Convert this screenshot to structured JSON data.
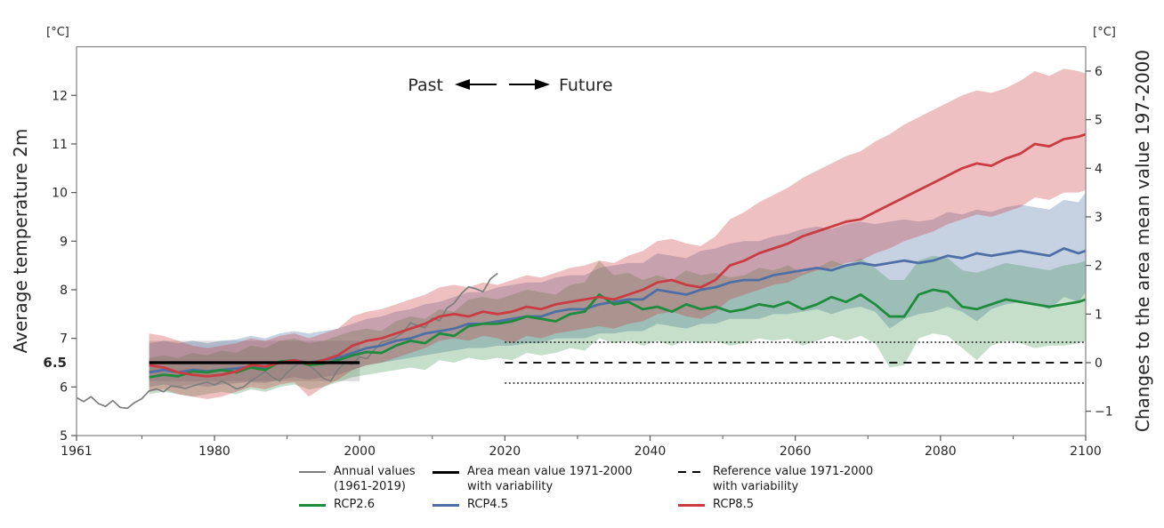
{
  "chart": {
    "left_unit": "[°C]",
    "right_unit": "[°C]",
    "left_axis_title": "Average temperature 2m",
    "right_axis_title": "Changes to the area mean value 197-2000",
    "highlight_tick": "6.5",
    "annotation": {
      "past": "Past",
      "future": "Future"
    }
  },
  "legend": {
    "annual": {
      "line1": "Annual values",
      "line2": "(1961-2019)"
    },
    "area_mean": {
      "line1": "Area mean value 1971-2000",
      "line2": "with variability"
    },
    "reference": {
      "line1": "Reference value 1971-2000",
      "line2": "with variability"
    },
    "rcp26": "RCP2.6",
    "rcp45": "RCP4.5",
    "rcp85": "RCP8.5"
  },
  "chart_data": {
    "type": "line",
    "title": "",
    "x_axis": {
      "range": [
        1961,
        2100
      ],
      "major_ticks": [
        1961,
        1980,
        2000,
        2020,
        2040,
        2060,
        2080,
        2100
      ],
      "minor_ticks": [
        1970,
        1990,
        2010,
        2030,
        2050,
        2070,
        2090
      ]
    },
    "y_left": {
      "label": "Average temperature 2m",
      "unit": "[°C]",
      "range": [
        5,
        13
      ],
      "ticks": [
        5,
        6,
        7,
        8,
        9,
        10,
        11,
        12
      ],
      "special_tick": 6.5
    },
    "y_right": {
      "label": "Changes to the area mean value 197-2000",
      "unit": "[°C]",
      "ticks": [
        -1,
        0,
        1,
        2,
        3,
        4,
        5,
        6
      ],
      "offset": 6.5
    },
    "grid": false,
    "legend_position": "bottom",
    "styles": {
      "annual_color": "#7d7d7d",
      "mean_line_color": "#000000",
      "reference_color": "#161616",
      "variability_box_fill": "#dcdcdc",
      "frame_color": "#8c8c8c"
    },
    "annual": {
      "name": "Annual values (1961-2019)",
      "start_year": 1961,
      "values": [
        5.78,
        5.7,
        5.8,
        5.66,
        5.6,
        5.72,
        5.58,
        5.56,
        5.68,
        5.76,
        5.92,
        5.96,
        5.9,
        6.02,
        6.0,
        5.97,
        6.02,
        6.06,
        6.1,
        6.04,
        6.12,
        6.05,
        5.96,
        6.0,
        6.12,
        6.22,
        6.32,
        6.2,
        6.12,
        6.3,
        6.42,
        6.52,
        6.45,
        6.33,
        6.18,
        6.12,
        6.36,
        6.5,
        6.46,
        6.62,
        6.58,
        6.76,
        6.92,
        6.96,
        7.02,
        7.12,
        7.32,
        7.26,
        7.22,
        7.42,
        7.36,
        7.62,
        7.72,
        7.92,
        8.06,
        8.02,
        7.96,
        8.22,
        8.34
      ]
    },
    "mean_1971_2000": {
      "value": 6.5,
      "year_range": [
        1971,
        2000
      ],
      "variability": [
        6.12,
        6.95
      ]
    },
    "reference_line": {
      "value": 6.5,
      "year_range": [
        2020,
        2100
      ],
      "variability_values": [
        6.08,
        6.92
      ]
    },
    "model_years": [
      1971,
      1973,
      1975,
      1977,
      1979,
      1981,
      1983,
      1985,
      1987,
      1989,
      1991,
      1993,
      1995,
      1997,
      1999,
      2001,
      2003,
      2005,
      2007,
      2009,
      2011,
      2013,
      2015,
      2017,
      2019,
      2021,
      2023,
      2025,
      2027,
      2029,
      2031,
      2033,
      2035,
      2037,
      2039,
      2041,
      2043,
      2045,
      2047,
      2049,
      2051,
      2053,
      2055,
      2057,
      2059,
      2061,
      2063,
      2065,
      2067,
      2069,
      2071,
      2073,
      2075,
      2077,
      2079,
      2081,
      2083,
      2085,
      2087,
      2089,
      2091,
      2093,
      2095,
      2097,
      2099,
      2100
    ],
    "series": [
      {
        "name": "RCP2.6",
        "key": "rcp26",
        "z": 2,
        "color": "#1e8b3d",
        "band_color": "rgba(46,139,69,0.28)",
        "mean": [
          6.2,
          6.25,
          6.22,
          6.32,
          6.3,
          6.35,
          6.3,
          6.4,
          6.35,
          6.52,
          6.55,
          6.45,
          6.48,
          6.55,
          6.65,
          6.72,
          6.7,
          6.85,
          6.95,
          6.9,
          7.1,
          7.05,
          7.25,
          7.3,
          7.3,
          7.35,
          7.45,
          7.4,
          7.35,
          7.5,
          7.55,
          7.9,
          7.7,
          7.75,
          7.6,
          7.65,
          7.55,
          7.7,
          7.6,
          7.65,
          7.55,
          7.6,
          7.7,
          7.65,
          7.75,
          7.6,
          7.7,
          7.85,
          7.75,
          7.9,
          7.7,
          7.45,
          7.45,
          7.9,
          8.0,
          7.95,
          7.65,
          7.6,
          7.7,
          7.8,
          7.75,
          7.7,
          7.65,
          7.7,
          7.75,
          7.8
        ],
        "lo": [
          5.85,
          5.9,
          5.85,
          5.8,
          5.85,
          5.9,
          5.85,
          5.95,
          5.9,
          6.0,
          6.05,
          5.95,
          6.0,
          6.1,
          6.2,
          6.25,
          6.3,
          6.35,
          6.4,
          6.35,
          6.55,
          6.5,
          6.6,
          6.55,
          6.6,
          6.55,
          6.7,
          6.65,
          6.7,
          6.8,
          6.75,
          7.0,
          6.9,
          6.95,
          6.85,
          6.95,
          6.85,
          6.95,
          6.9,
          6.95,
          6.85,
          6.9,
          7.0,
          6.95,
          7.0,
          6.85,
          6.95,
          7.05,
          6.95,
          7.05,
          6.9,
          6.4,
          6.45,
          7.0,
          7.1,
          7.05,
          6.8,
          6.55,
          6.85,
          6.95,
          6.9,
          6.8,
          6.85,
          6.85,
          6.9,
          6.95
        ],
        "hi": [
          6.6,
          6.65,
          6.6,
          6.7,
          6.65,
          6.75,
          6.7,
          6.85,
          6.8,
          6.95,
          7.0,
          6.9,
          6.95,
          7.05,
          7.15,
          7.2,
          7.15,
          7.35,
          7.45,
          7.4,
          7.6,
          7.55,
          7.8,
          7.85,
          7.8,
          7.9,
          8.0,
          7.95,
          7.9,
          8.1,
          8.15,
          8.6,
          8.3,
          8.35,
          8.2,
          8.3,
          8.2,
          8.4,
          8.3,
          8.35,
          8.25,
          8.3,
          8.45,
          8.4,
          8.5,
          8.35,
          8.45,
          8.6,
          8.5,
          8.65,
          8.45,
          8.2,
          8.2,
          8.6,
          8.7,
          8.65,
          8.4,
          8.35,
          8.45,
          8.55,
          8.5,
          8.45,
          8.4,
          8.5,
          8.55,
          8.6
        ]
      },
      {
        "name": "RCP4.5",
        "key": "rcp45",
        "z": 1,
        "color": "#4e6fa6",
        "band_color": "rgba(78,111,166,0.32)",
        "mean": [
          6.3,
          6.35,
          6.3,
          6.35,
          6.32,
          6.35,
          6.38,
          6.42,
          6.4,
          6.5,
          6.55,
          6.5,
          6.55,
          6.6,
          6.7,
          6.8,
          6.85,
          6.95,
          7.0,
          7.1,
          7.15,
          7.2,
          7.3,
          7.3,
          7.35,
          7.4,
          7.45,
          7.45,
          7.55,
          7.6,
          7.6,
          7.7,
          7.75,
          7.8,
          7.8,
          8.0,
          7.95,
          7.9,
          8.0,
          8.05,
          8.15,
          8.2,
          8.2,
          8.3,
          8.35,
          8.4,
          8.45,
          8.4,
          8.5,
          8.55,
          8.5,
          8.55,
          8.6,
          8.55,
          8.6,
          8.7,
          8.65,
          8.75,
          8.7,
          8.75,
          8.8,
          8.75,
          8.7,
          8.85,
          8.75,
          8.8
        ],
        "lo": [
          6.0,
          6.05,
          6.0,
          6.05,
          6.0,
          6.05,
          6.08,
          6.1,
          6.08,
          6.15,
          6.2,
          6.15,
          6.2,
          6.25,
          6.35,
          6.45,
          6.5,
          6.55,
          6.6,
          6.65,
          6.7,
          6.75,
          6.8,
          6.8,
          6.85,
          6.85,
          6.9,
          6.9,
          7.0,
          7.0,
          7.0,
          7.1,
          7.1,
          7.15,
          7.15,
          7.3,
          7.25,
          7.2,
          7.3,
          7.3,
          7.4,
          7.4,
          7.4,
          7.5,
          7.5,
          7.55,
          7.6,
          7.5,
          7.6,
          7.65,
          7.55,
          7.2,
          7.4,
          7.5,
          7.55,
          7.65,
          7.55,
          7.35,
          7.6,
          7.7,
          7.75,
          7.7,
          7.6,
          7.85,
          7.75,
          7.95
        ],
        "hi": [
          6.9,
          6.95,
          6.9,
          6.95,
          6.9,
          6.95,
          6.98,
          7.05,
          7.0,
          7.1,
          7.15,
          7.1,
          7.15,
          7.2,
          7.3,
          7.4,
          7.45,
          7.55,
          7.6,
          7.7,
          7.75,
          7.85,
          7.95,
          7.95,
          8.05,
          8.1,
          8.15,
          8.15,
          8.25,
          8.3,
          8.3,
          8.45,
          8.5,
          8.55,
          8.55,
          8.75,
          8.7,
          8.65,
          8.8,
          8.85,
          8.95,
          9.0,
          9.0,
          9.1,
          9.15,
          9.25,
          9.3,
          9.25,
          9.35,
          9.4,
          9.35,
          9.4,
          9.45,
          9.4,
          9.45,
          9.6,
          9.55,
          9.65,
          9.6,
          9.7,
          9.75,
          9.7,
          9.65,
          9.85,
          9.8,
          10.0
        ]
      },
      {
        "name": "RCP8.5",
        "key": "rcp85",
        "z": 3,
        "color": "#ca3c42",
        "band_color": "rgba(202,60,66,0.32)",
        "mean": [
          6.45,
          6.4,
          6.3,
          6.25,
          6.22,
          6.25,
          6.32,
          6.45,
          6.42,
          6.5,
          6.55,
          6.48,
          6.55,
          6.65,
          6.85,
          6.95,
          7.0,
          7.1,
          7.2,
          7.3,
          7.45,
          7.5,
          7.45,
          7.55,
          7.5,
          7.55,
          7.65,
          7.6,
          7.7,
          7.75,
          7.8,
          7.85,
          7.8,
          7.9,
          8.0,
          8.15,
          8.2,
          8.1,
          8.05,
          8.2,
          8.5,
          8.6,
          8.75,
          8.85,
          8.95,
          9.1,
          9.2,
          9.3,
          9.4,
          9.45,
          9.6,
          9.75,
          9.9,
          10.05,
          10.2,
          10.35,
          10.5,
          10.6,
          10.55,
          10.7,
          10.8,
          11.0,
          10.95,
          11.1,
          11.15,
          11.2
        ],
        "lo": [
          5.9,
          5.95,
          5.85,
          5.8,
          5.75,
          5.8,
          5.9,
          6.0,
          5.95,
          6.05,
          6.1,
          5.8,
          6.0,
          6.15,
          6.35,
          6.45,
          6.5,
          6.6,
          6.7,
          6.8,
          6.95,
          7.0,
          6.95,
          7.05,
          7.0,
          6.9,
          7.05,
          7.0,
          7.1,
          7.15,
          7.2,
          7.25,
          7.2,
          7.3,
          7.35,
          7.5,
          7.55,
          7.45,
          7.4,
          7.55,
          7.8,
          7.9,
          8.0,
          8.1,
          8.15,
          8.3,
          8.4,
          8.45,
          8.55,
          8.6,
          8.75,
          8.85,
          9.0,
          9.1,
          9.2,
          9.35,
          9.45,
          9.55,
          9.5,
          9.6,
          9.7,
          9.9,
          9.85,
          10.0,
          10.0,
          10.05
        ],
        "hi": [
          7.1,
          7.05,
          6.95,
          6.85,
          6.8,
          6.85,
          6.9,
          7.0,
          6.95,
          7.05,
          7.1,
          7.0,
          7.1,
          7.2,
          7.45,
          7.55,
          7.6,
          7.7,
          7.8,
          7.9,
          8.05,
          8.1,
          8.05,
          8.15,
          8.1,
          8.2,
          8.3,
          8.25,
          8.35,
          8.45,
          8.5,
          8.6,
          8.55,
          8.7,
          8.8,
          9.0,
          9.05,
          8.95,
          8.9,
          9.1,
          9.45,
          9.6,
          9.8,
          9.95,
          10.1,
          10.3,
          10.45,
          10.6,
          10.75,
          10.85,
          11.05,
          11.2,
          11.4,
          11.55,
          11.7,
          11.85,
          12.0,
          12.1,
          12.05,
          12.15,
          12.3,
          12.5,
          12.4,
          12.55,
          12.5,
          12.45
        ]
      }
    ]
  }
}
